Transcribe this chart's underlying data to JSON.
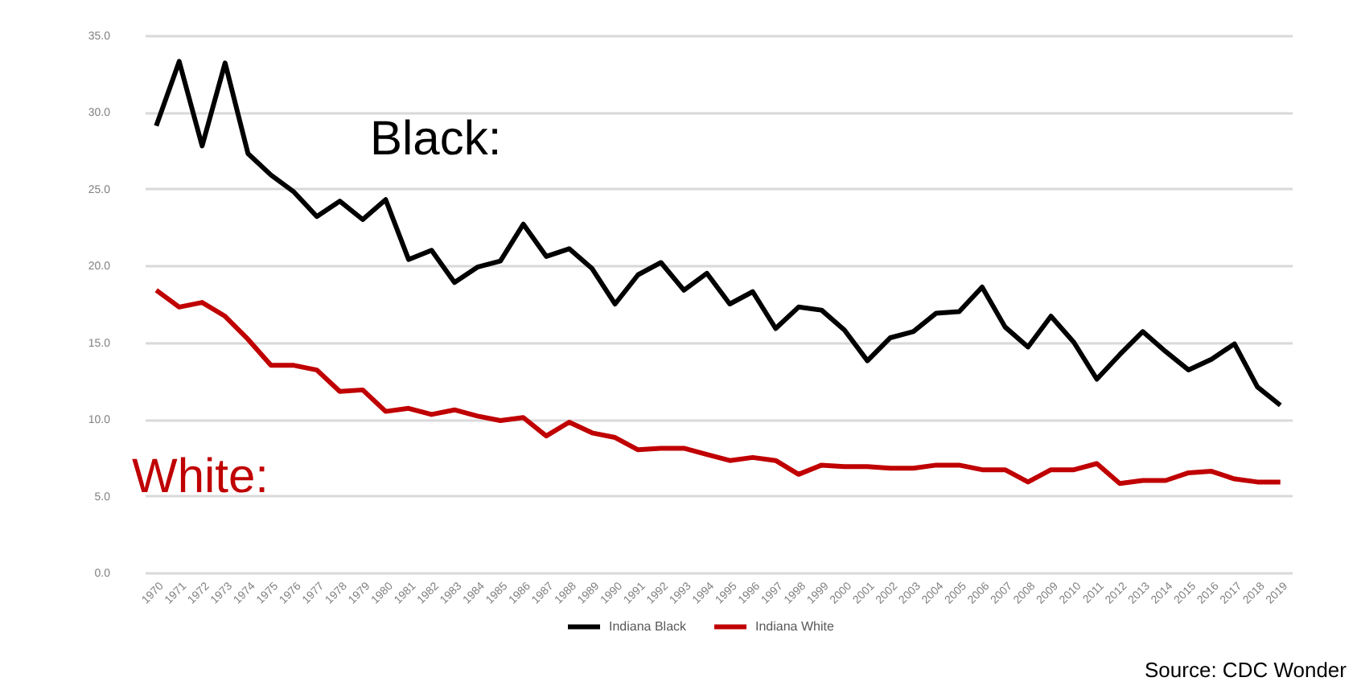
{
  "chart_data": {
    "type": "line",
    "categories": [
      "1970",
      "1971",
      "1972",
      "1973",
      "1974",
      "1975",
      "1976",
      "1977",
      "1978",
      "1979",
      "1980",
      "1981",
      "1982",
      "1983",
      "1984",
      "1985",
      "1986",
      "1987",
      "1988",
      "1989",
      "1990",
      "1991",
      "1992",
      "1993",
      "1994",
      "1995",
      "1996",
      "1997",
      "1998",
      "1999",
      "2000",
      "2001",
      "2002",
      "2003",
      "2004",
      "2005",
      "2006",
      "2007",
      "2008",
      "2009",
      "2010",
      "2011",
      "2012",
      "2013",
      "2014",
      "2015",
      "2016",
      "2017",
      "2018",
      "2019"
    ],
    "series": [
      {
        "name": "Indiana Black",
        "color": "#000000",
        "values": [
          29.1,
          33.3,
          27.8,
          33.2,
          27.3,
          25.9,
          24.8,
          23.2,
          24.2,
          23.0,
          24.3,
          20.4,
          21.0,
          18.9,
          19.9,
          20.3,
          22.7,
          20.6,
          21.1,
          19.8,
          17.5,
          19.4,
          20.2,
          18.4,
          19.5,
          17.5,
          18.3,
          15.9,
          17.3,
          17.1,
          15.8,
          13.8,
          15.3,
          15.7,
          16.9,
          17.0,
          18.6,
          16.0,
          14.7,
          16.7,
          15.0,
          12.6,
          14.2,
          15.7,
          14.4,
          13.2,
          13.9,
          14.9,
          12.1,
          10.9
        ]
      },
      {
        "name": "Indiana White",
        "color": "#c00000",
        "values": [
          18.4,
          17.3,
          17.6,
          16.7,
          15.2,
          13.5,
          13.5,
          13.2,
          11.8,
          11.9,
          10.5,
          10.7,
          10.3,
          10.6,
          10.2,
          9.9,
          10.1,
          8.9,
          9.8,
          9.1,
          8.8,
          8.0,
          8.1,
          8.1,
          7.7,
          7.3,
          7.5,
          7.3,
          6.4,
          7.0,
          6.9,
          6.9,
          6.8,
          6.8,
          7.0,
          7.0,
          6.7,
          6.7,
          5.9,
          6.7,
          6.7,
          7.1,
          5.8,
          6.0,
          6.0,
          6.5,
          6.6,
          6.1,
          5.9,
          5.9
        ]
      }
    ],
    "ylim": [
      0,
      35
    ],
    "yticks": [
      {
        "value": 0,
        "label": "0.0"
      },
      {
        "value": 5,
        "label": "5.0"
      },
      {
        "value": 10,
        "label": "10.0"
      },
      {
        "value": 15,
        "label": "15.0"
      },
      {
        "value": 20,
        "label": "20.0"
      },
      {
        "value": 25,
        "label": "25.0"
      },
      {
        "value": 30,
        "label": "30.0"
      },
      {
        "value": 35,
        "label": "35.0"
      }
    ],
    "annotations": [
      "Black:",
      "White:",
      "Source: CDC Wonder"
    ],
    "grid": "y",
    "legend": "bottom",
    "marker": "none",
    "line_style": "solid"
  }
}
